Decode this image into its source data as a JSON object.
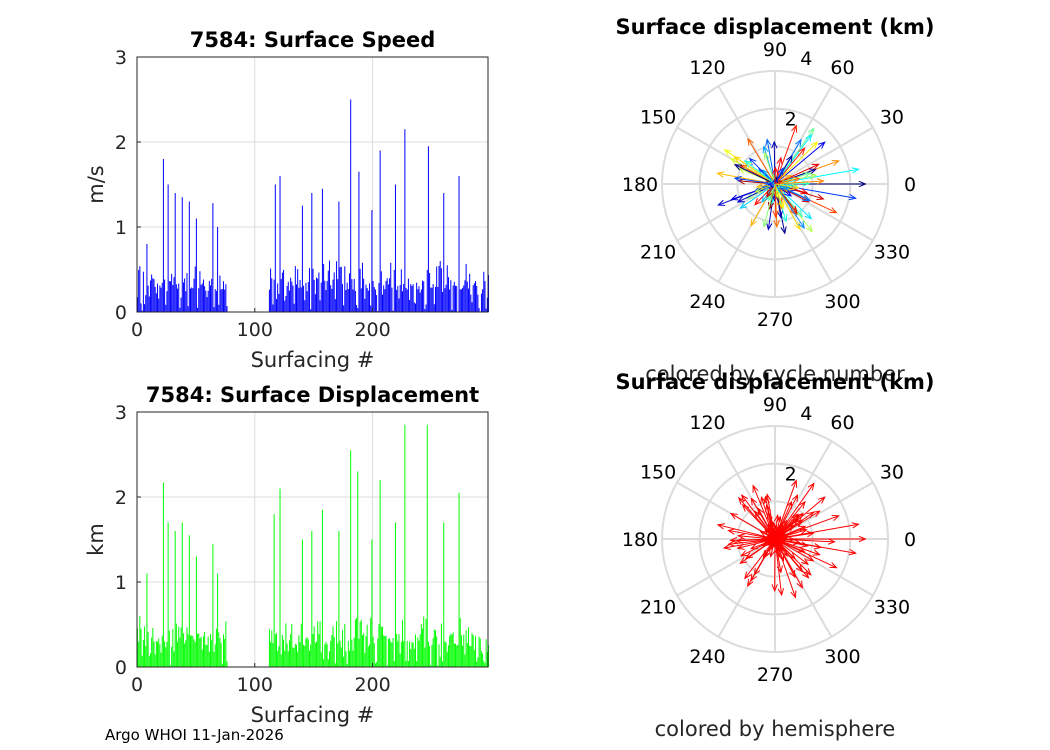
{
  "footer": "Argo WHOI 11-Jan-2026",
  "colors": {
    "speed": "#0000ff",
    "displacement": "#00ff00",
    "hemisphere": "#ff0000",
    "grid": "#dcdcdc",
    "axis": "#262626"
  },
  "chart_data": [
    {
      "type": "bar",
      "title": "7584: Surface Speed",
      "xlabel": "Surfacing #",
      "ylabel": "m/s",
      "xlim": [
        0,
        298
      ],
      "ylim": [
        0,
        3
      ],
      "xticks": [
        "0",
        "100",
        "200"
      ],
      "yticks": [
        "0",
        "1",
        "2",
        "3"
      ],
      "grid": true,
      "data_gap": [
        77,
        111
      ],
      "peaks": [
        {
          "x": 8,
          "y": 0.8
        },
        {
          "x": 22,
          "y": 1.8
        },
        {
          "x": 26,
          "y": 1.5
        },
        {
          "x": 32,
          "y": 1.4
        },
        {
          "x": 38,
          "y": 1.35
        },
        {
          "x": 44,
          "y": 1.3
        },
        {
          "x": 50,
          "y": 1.1
        },
        {
          "x": 64,
          "y": 1.28
        },
        {
          "x": 68,
          "y": 1.0
        },
        {
          "x": 117,
          "y": 1.5
        },
        {
          "x": 121,
          "y": 1.6
        },
        {
          "x": 140,
          "y": 1.25
        },
        {
          "x": 148,
          "y": 1.4
        },
        {
          "x": 157,
          "y": 1.45
        },
        {
          "x": 171,
          "y": 1.3
        },
        {
          "x": 181,
          "y": 2.5
        },
        {
          "x": 188,
          "y": 1.65
        },
        {
          "x": 199,
          "y": 1.2
        },
        {
          "x": 206,
          "y": 1.9
        },
        {
          "x": 219,
          "y": 1.5
        },
        {
          "x": 227,
          "y": 2.15
        },
        {
          "x": 247,
          "y": 1.95
        },
        {
          "x": 260,
          "y": 1.4
        },
        {
          "x": 273,
          "y": 1.6
        }
      ]
    },
    {
      "type": "bar",
      "title": "7584: Surface Displacement",
      "xlabel": "Surfacing #",
      "ylabel": "km",
      "xlim": [
        0,
        298
      ],
      "ylim": [
        0,
        3
      ],
      "xticks": [
        "0",
        "100",
        "200"
      ],
      "yticks": [
        "0",
        "1",
        "2",
        "3"
      ],
      "grid": true,
      "data_gap": [
        77,
        111
      ],
      "peaks": [
        {
          "x": 8,
          "y": 1.1
        },
        {
          "x": 22,
          "y": 2.17
        },
        {
          "x": 26,
          "y": 1.7
        },
        {
          "x": 32,
          "y": 1.6
        },
        {
          "x": 38,
          "y": 1.7
        },
        {
          "x": 44,
          "y": 1.55
        },
        {
          "x": 50,
          "y": 1.3
        },
        {
          "x": 64,
          "y": 1.45
        },
        {
          "x": 68,
          "y": 1.1
        },
        {
          "x": 116,
          "y": 1.8
        },
        {
          "x": 121,
          "y": 2.1
        },
        {
          "x": 140,
          "y": 1.5
        },
        {
          "x": 148,
          "y": 1.6
        },
        {
          "x": 157,
          "y": 1.85
        },
        {
          "x": 171,
          "y": 1.6
        },
        {
          "x": 181,
          "y": 2.55
        },
        {
          "x": 187,
          "y": 2.3
        },
        {
          "x": 199,
          "y": 1.5
        },
        {
          "x": 206,
          "y": 2.2
        },
        {
          "x": 219,
          "y": 1.7
        },
        {
          "x": 227,
          "y": 2.85
        },
        {
          "x": 246,
          "y": 2.85
        },
        {
          "x": 260,
          "y": 1.7
        },
        {
          "x": 273,
          "y": 2.05
        }
      ]
    },
    {
      "type": "polar",
      "title": "Surface displacement (km)",
      "caption": "colored by cycle number",
      "rmax": 4,
      "rticks": [
        "2",
        "4"
      ],
      "angle_ticks": [
        "0",
        "30",
        "60",
        "90",
        "120",
        "150",
        "180",
        "210",
        "240",
        "270",
        "300",
        "330"
      ],
      "vectors_approx": [
        {
          "angle": 0,
          "r": 3.2
        },
        {
          "angle": 10,
          "r": 3.0
        },
        {
          "angle": 20,
          "r": 2.4
        },
        {
          "angle": 40,
          "r": 2.3
        },
        {
          "angle": 55,
          "r": 2.4
        },
        {
          "angle": 70,
          "r": 2.2
        },
        {
          "angle": 100,
          "r": 1.6
        },
        {
          "angle": 150,
          "r": 1.8
        },
        {
          "angle": 175,
          "r": 1.3
        },
        {
          "angle": 215,
          "r": 1.5
        },
        {
          "angle": 240,
          "r": 1.7
        },
        {
          "angle": 280,
          "r": 1.2
        },
        {
          "angle": 310,
          "r": 1.5
        },
        {
          "angle": 335,
          "r": 2.4
        },
        {
          "angle": 350,
          "r": 2.9
        }
      ]
    },
    {
      "type": "polar",
      "title": "Surface displacement (km)",
      "caption": "colored by hemisphere",
      "rmax": 4,
      "rticks": [
        "2",
        "4"
      ],
      "angle_ticks": [
        "0",
        "30",
        "60",
        "90",
        "120",
        "150",
        "180",
        "210",
        "240",
        "270",
        "300",
        "330"
      ],
      "vectors_approx": [
        {
          "angle": 0,
          "r": 3.2
        },
        {
          "angle": 10,
          "r": 3.0
        },
        {
          "angle": 20,
          "r": 2.4
        },
        {
          "angle": 40,
          "r": 2.3
        },
        {
          "angle": 55,
          "r": 2.4
        },
        {
          "angle": 70,
          "r": 2.2
        },
        {
          "angle": 100,
          "r": 1.6
        },
        {
          "angle": 150,
          "r": 1.8
        },
        {
          "angle": 175,
          "r": 1.3
        },
        {
          "angle": 215,
          "r": 1.5
        },
        {
          "angle": 240,
          "r": 1.7
        },
        {
          "angle": 280,
          "r": 1.2
        },
        {
          "angle": 310,
          "r": 1.5
        },
        {
          "angle": 335,
          "r": 2.4
        },
        {
          "angle": 350,
          "r": 2.9
        }
      ]
    }
  ]
}
